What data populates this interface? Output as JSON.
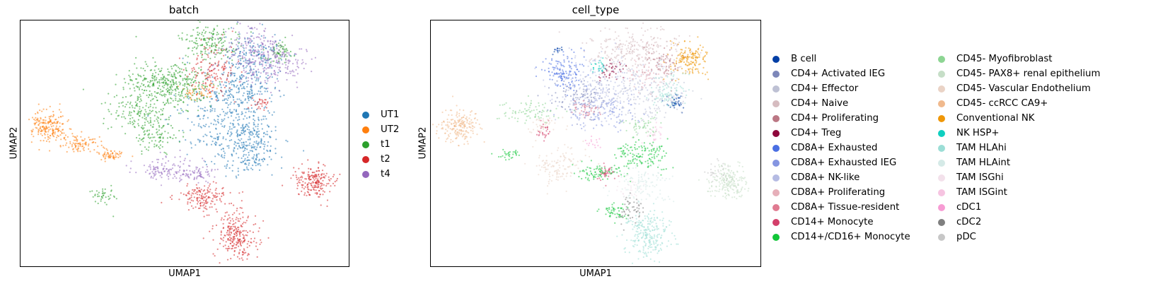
{
  "chart_data": [
    {
      "type": "scatter",
      "title": "batch",
      "xlabel": "UMAP1",
      "ylabel": "UMAP2",
      "grid": false,
      "legend_position": "right",
      "series": [
        {
          "name": "UT1",
          "color": "#1f77b4"
        },
        {
          "name": "UT2",
          "color": "#ff7f0e"
        },
        {
          "name": "t1",
          "color": "#2ca02c"
        },
        {
          "name": "t2",
          "color": "#d62728"
        },
        {
          "name": "t4",
          "color": "#9467bd"
        }
      ]
    },
    {
      "type": "scatter",
      "title": "cell_type",
      "xlabel": "UMAP1",
      "ylabel": "UMAP2",
      "grid": false,
      "legend_position": "right",
      "series": [
        {
          "name": "B cell",
          "color": "#023fa5"
        },
        {
          "name": "CD4+ Activated IEG",
          "color": "#7d87b9"
        },
        {
          "name": "CD4+ Effector",
          "color": "#bec1d4"
        },
        {
          "name": "CD4+ Naive",
          "color": "#d6bcc0"
        },
        {
          "name": "CD4+ Proliferating",
          "color": "#bb7784"
        },
        {
          "name": "CD4+ Treg",
          "color": "#8e063b"
        },
        {
          "name": "CD8A+ Exhausted",
          "color": "#4a6fe3"
        },
        {
          "name": "CD8A+ Exhausted IEG",
          "color": "#8595e1"
        },
        {
          "name": "CD8A+ NK-like",
          "color": "#b5bbe3"
        },
        {
          "name": "CD8A+ Proliferating",
          "color": "#e6afb9"
        },
        {
          "name": "CD8A+ Tissue-resident",
          "color": "#e07b91"
        },
        {
          "name": "CD14+ Monocyte",
          "color": "#d33f6a"
        },
        {
          "name": "CD14+/CD16+ Monocyte",
          "color": "#11c638"
        },
        {
          "name": "CD45- Myofibroblast",
          "color": "#8dd593"
        },
        {
          "name": "CD45- PAX8+ renal epithelium",
          "color": "#c6dec7"
        },
        {
          "name": "CD45- Vascular Endothelium",
          "color": "#ead3c6"
        },
        {
          "name": "CD45- ccRCC CA9+",
          "color": "#f0b98d"
        },
        {
          "name": "Conventional NK",
          "color": "#ef9708"
        },
        {
          "name": "NK HSP+",
          "color": "#0fcfc0"
        },
        {
          "name": "TAM HLAhi",
          "color": "#9cded6"
        },
        {
          "name": "TAM HLAint",
          "color": "#d5eae7"
        },
        {
          "name": "TAM ISGhi",
          "color": "#f3e1eb"
        },
        {
          "name": "TAM ISGint",
          "color": "#f6c4e1"
        },
        {
          "name": "cDC1",
          "color": "#f79cd4"
        },
        {
          "name": "cDC2",
          "color": "#7f7f7f"
        },
        {
          "name": "pDC",
          "color": "#c7c7c7"
        }
      ]
    }
  ]
}
